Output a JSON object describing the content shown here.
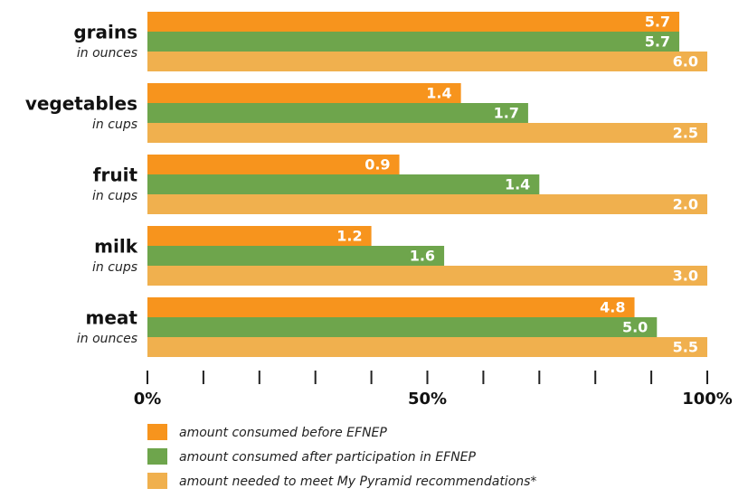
{
  "chart_data": {
    "type": "bar",
    "orientation": "horizontal",
    "categories": [
      "grains",
      "vegetables",
      "fruit",
      "milk",
      "meat"
    ],
    "category_units": [
      "in ounces",
      "in cups",
      "in cups",
      "in cups",
      "in ounces"
    ],
    "series": [
      {
        "name": "amount consumed before EFNEP",
        "color": "#f7941d",
        "values": [
          95,
          56,
          45,
          40,
          87
        ],
        "value_labels": [
          "5.7",
          "1.4",
          "0.9",
          "1.2",
          "4.8"
        ]
      },
      {
        "name": "amount consumed after participation in EFNEP",
        "color": "#6ea54c",
        "values": [
          95,
          68,
          70,
          53,
          91
        ],
        "value_labels": [
          "5.7",
          "1.7",
          "1.4",
          "1.6",
          "5.0"
        ]
      },
      {
        "name": "amount needed to meet My Pyramid recommendations*",
        "color": "#f0b04e",
        "values": [
          100,
          100,
          100,
          100,
          100
        ],
        "value_labels": [
          "6.0",
          "2.5",
          "2.0",
          "3.0",
          "5.5"
        ]
      }
    ],
    "xlim": [
      0,
      100
    ],
    "xticks": [
      {
        "value": 0,
        "label": "0%"
      },
      {
        "value": 50,
        "label": "50%"
      },
      {
        "value": 100,
        "label": "100%"
      }
    ],
    "xminor_ticks": [
      10,
      20,
      30,
      40,
      60,
      70,
      80,
      90
    ],
    "legend": "bottom"
  }
}
